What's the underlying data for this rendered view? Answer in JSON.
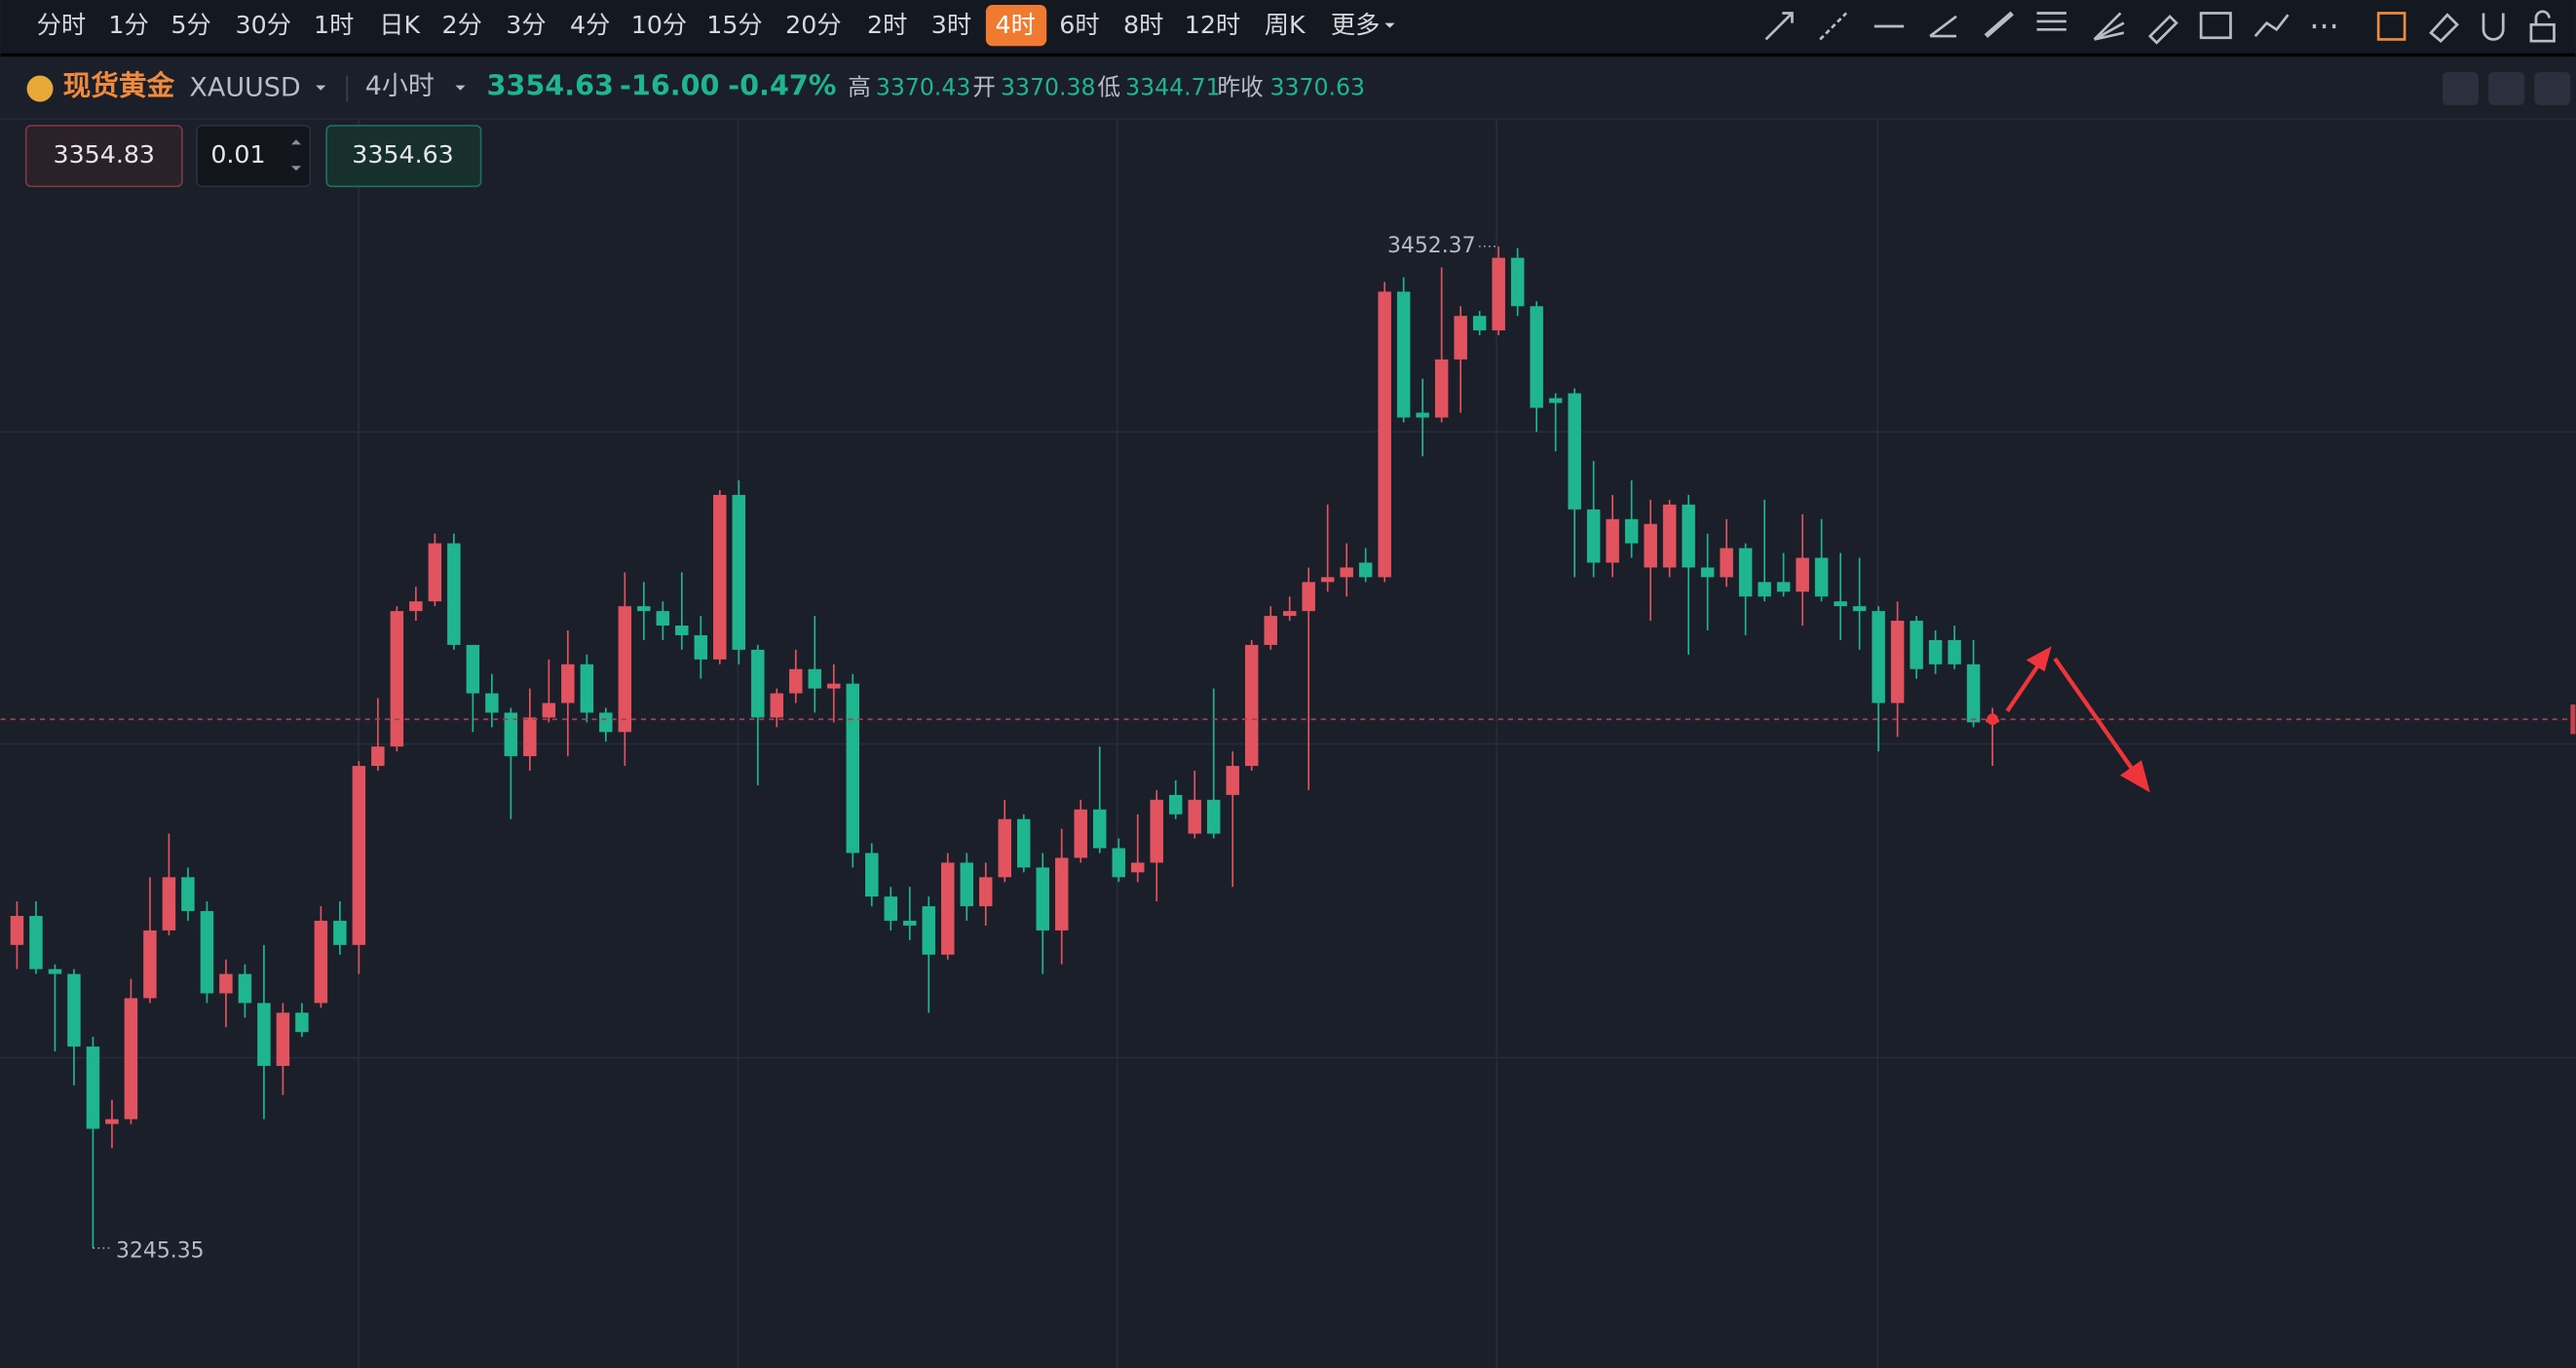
{
  "toolbar": {
    "periods": [
      "分时",
      "1分",
      "5分",
      "30分",
      "1时",
      "日K",
      "2分",
      "3分",
      "4分",
      "10分",
      "15分",
      "20分",
      "2时",
      "3时",
      "4时",
      "6时",
      "8时",
      "12时",
      "周K",
      "更多"
    ],
    "active_index": 14
  },
  "quote": {
    "name": "现货黄金",
    "symbol": "XAUUSD",
    "interval": "4小时",
    "price": 3354.63,
    "change": {
      "value": -16,
      "label": "-16.00"
    },
    "change_pct": {
      "value": -0.47,
      "label": "-0.47%"
    },
    "stats": [
      {
        "label": "高",
        "value": 3370.43
      },
      {
        "label": "开",
        "value": 3370.38
      },
      {
        "label": "低",
        "value": 3344.71
      },
      {
        "label": "昨收",
        "value": 3370.63
      }
    ]
  },
  "order": {
    "sell": 3354.83,
    "quantity": 0.01,
    "buy": 3354.63
  },
  "chart_data": {
    "type": "candlestick",
    "up_color": "#e0535f",
    "down_color": "#1fb58e",
    "candles": [
      {
        "open": 3308,
        "close": 3314,
        "high": 3317,
        "low": 3303
      },
      {
        "open": 3314,
        "close": 3303,
        "high": 3317,
        "low": 3302
      },
      {
        "open": 3303,
        "close": 3302,
        "high": 3304,
        "low": 3286
      },
      {
        "open": 3302,
        "close": 3287,
        "high": 3303,
        "low": 3279
      },
      {
        "open": 3287,
        "close": 3270,
        "high": 3289,
        "low": 3245.35
      },
      {
        "open": 3271,
        "close": 3272,
        "high": 3276,
        "low": 3266
      },
      {
        "open": 3272,
        "close": 3297,
        "high": 3301,
        "low": 3271
      },
      {
        "open": 3297,
        "close": 3311,
        "high": 3322,
        "low": 3296
      },
      {
        "open": 3311,
        "close": 3322,
        "high": 3331,
        "low": 3310
      },
      {
        "open": 3322,
        "close": 3315,
        "high": 3324,
        "low": 3313
      },
      {
        "open": 3315,
        "close": 3298,
        "high": 3317,
        "low": 3296
      },
      {
        "open": 3298,
        "close": 3302,
        "high": 3305,
        "low": 3291
      },
      {
        "open": 3302,
        "close": 3296,
        "high": 3304,
        "low": 3293
      },
      {
        "open": 3296,
        "close": 3283,
        "high": 3308,
        "low": 3272
      },
      {
        "open": 3283,
        "close": 3294,
        "high": 3296,
        "low": 3277
      },
      {
        "open": 3294,
        "close": 3290,
        "high": 3296,
        "low": 3289
      },
      {
        "open": 3296,
        "close": 3313,
        "high": 3316,
        "low": 3295
      },
      {
        "open": 3313,
        "close": 3308,
        "high": 3317,
        "low": 3306
      },
      {
        "open": 3308,
        "close": 3345,
        "high": 3346,
        "low": 3302
      },
      {
        "open": 3345,
        "close": 3349,
        "high": 3359,
        "low": 3344
      },
      {
        "open": 3349,
        "close": 3377,
        "high": 3378,
        "low": 3348
      },
      {
        "open": 3377,
        "close": 3379,
        "high": 3382,
        "low": 3375
      },
      {
        "open": 3379,
        "close": 3391,
        "high": 3393,
        "low": 3378
      },
      {
        "open": 3391,
        "close": 3370,
        "high": 3393,
        "low": 3369
      },
      {
        "open": 3370,
        "close": 3360,
        "high": 3370,
        "low": 3352
      },
      {
        "open": 3360,
        "close": 3356,
        "high": 3364,
        "low": 3353
      },
      {
        "open": 3356,
        "close": 3347,
        "high": 3357,
        "low": 3334
      },
      {
        "open": 3347,
        "close": 3355,
        "high": 3361,
        "low": 3344
      },
      {
        "open": 3355,
        "close": 3358,
        "high": 3367,
        "low": 3354
      },
      {
        "open": 3358,
        "close": 3366,
        "high": 3373,
        "low": 3347
      },
      {
        "open": 3366,
        "close": 3356,
        "high": 3368,
        "low": 3354
      },
      {
        "open": 3356,
        "close": 3352,
        "high": 3357,
        "low": 3350
      },
      {
        "open": 3352,
        "close": 3378,
        "high": 3385,
        "low": 3345
      },
      {
        "open": 3378,
        "close": 3377,
        "high": 3383,
        "low": 3371
      },
      {
        "open": 3377,
        "close": 3374,
        "high": 3379,
        "low": 3371
      },
      {
        "open": 3374,
        "close": 3372,
        "high": 3385,
        "low": 3369
      },
      {
        "open": 3372,
        "close": 3367,
        "high": 3376,
        "low": 3363
      },
      {
        "open": 3367,
        "close": 3401,
        "high": 3402,
        "low": 3366
      },
      {
        "open": 3401,
        "close": 3369,
        "high": 3404,
        "low": 3366
      },
      {
        "open": 3369,
        "close": 3355,
        "high": 3370,
        "low": 3341
      },
      {
        "open": 3355,
        "close": 3360,
        "high": 3361,
        "low": 3353
      },
      {
        "open": 3360,
        "close": 3365,
        "high": 3369,
        "low": 3358
      },
      {
        "open": 3365,
        "close": 3361,
        "high": 3376,
        "low": 3356
      },
      {
        "open": 3361,
        "close": 3362,
        "high": 3366,
        "low": 3354
      },
      {
        "open": 3362,
        "close": 3327,
        "high": 3364,
        "low": 3324
      },
      {
        "open": 3327,
        "close": 3318,
        "high": 3329,
        "low": 3316
      },
      {
        "open": 3318,
        "close": 3313,
        "high": 3320,
        "low": 3311
      },
      {
        "open": 3313,
        "close": 3312,
        "high": 3320,
        "low": 3309
      },
      {
        "open": 3316,
        "close": 3306,
        "high": 3318,
        "low": 3294
      },
      {
        "open": 3306,
        "close": 3325,
        "high": 3327,
        "low": 3305
      },
      {
        "open": 3325,
        "close": 3316,
        "high": 3327,
        "low": 3313
      },
      {
        "open": 3316,
        "close": 3322,
        "high": 3325,
        "low": 3312
      },
      {
        "open": 3322,
        "close": 3334,
        "high": 3338,
        "low": 3321
      },
      {
        "open": 3334,
        "close": 3324,
        "high": 3335,
        "low": 3323
      },
      {
        "open": 3324,
        "close": 3311,
        "high": 3327,
        "low": 3302
      },
      {
        "open": 3311,
        "close": 3326,
        "high": 3332,
        "low": 3304
      },
      {
        "open": 3326,
        "close": 3336,
        "high": 3338,
        "low": 3325
      },
      {
        "open": 3336,
        "close": 3328,
        "high": 3349,
        "low": 3327
      },
      {
        "open": 3328,
        "close": 3322,
        "high": 3330,
        "low": 3321
      },
      {
        "open": 3323,
        "close": 3325,
        "high": 3335,
        "low": 3321
      },
      {
        "open": 3325,
        "close": 3338,
        "high": 3340,
        "low": 3317
      },
      {
        "open": 3339,
        "close": 3335,
        "high": 3342,
        "low": 3334
      },
      {
        "open": 3331,
        "close": 3338,
        "high": 3344,
        "low": 3330
      },
      {
        "open": 3338,
        "close": 3331,
        "high": 3361,
        "low": 3330
      },
      {
        "open": 3339,
        "close": 3345,
        "high": 3348,
        "low": 3320
      },
      {
        "open": 3345,
        "close": 3370,
        "high": 3371,
        "low": 3344
      },
      {
        "open": 3370,
        "close": 3376,
        "high": 3378,
        "low": 3369
      },
      {
        "open": 3376,
        "close": 3377,
        "high": 3380,
        "low": 3375
      },
      {
        "open": 3377,
        "close": 3383,
        "high": 3386,
        "low": 3340
      },
      {
        "open": 3383,
        "close": 3384,
        "high": 3399,
        "low": 3381
      },
      {
        "open": 3384,
        "close": 3386,
        "high": 3391,
        "low": 3380
      },
      {
        "open": 3387,
        "close": 3384,
        "high": 3390,
        "low": 3383
      },
      {
        "open": 3384,
        "close": 3443,
        "high": 3445,
        "low": 3383
      },
      {
        "open": 3443,
        "close": 3417,
        "high": 3446,
        "low": 3416
      },
      {
        "open": 3418,
        "close": 3417,
        "high": 3425,
        "low": 3409
      },
      {
        "open": 3417,
        "close": 3429,
        "high": 3448,
        "low": 3416
      },
      {
        "open": 3429,
        "close": 3438,
        "high": 3440,
        "low": 3418
      },
      {
        "open": 3438,
        "close": 3435,
        "high": 3439,
        "low": 3434
      },
      {
        "open": 3435,
        "close": 3450,
        "high": 3452.37,
        "low": 3434
      },
      {
        "open": 3450,
        "close": 3440,
        "high": 3452,
        "low": 3438
      },
      {
        "open": 3440,
        "close": 3419,
        "high": 3441,
        "low": 3414
      },
      {
        "open": 3421,
        "close": 3420,
        "high": 3422,
        "low": 3410
      },
      {
        "open": 3422,
        "close": 3398,
        "high": 3423,
        "low": 3384
      },
      {
        "open": 3398,
        "close": 3387,
        "high": 3408,
        "low": 3384
      },
      {
        "open": 3387,
        "close": 3396,
        "high": 3401,
        "low": 3384
      },
      {
        "open": 3396,
        "close": 3391,
        "high": 3404,
        "low": 3388
      },
      {
        "open": 3386,
        "close": 3395,
        "high": 3400,
        "low": 3375
      },
      {
        "open": 3386,
        "close": 3399,
        "high": 3400,
        "low": 3384
      },
      {
        "open": 3399,
        "close": 3386,
        "high": 3401,
        "low": 3368
      },
      {
        "open": 3386,
        "close": 3384,
        "high": 3393,
        "low": 3373
      },
      {
        "open": 3384,
        "close": 3390,
        "high": 3396,
        "low": 3382
      },
      {
        "open": 3390,
        "close": 3380,
        "high": 3391,
        "low": 3372
      },
      {
        "open": 3383,
        "close": 3380,
        "high": 3400,
        "low": 3379
      },
      {
        "open": 3383,
        "close": 3381,
        "high": 3389,
        "low": 3380
      },
      {
        "open": 3381,
        "close": 3388,
        "high": 3397,
        "low": 3374
      },
      {
        "open": 3388,
        "close": 3380,
        "high": 3396,
        "low": 3379
      },
      {
        "open": 3379,
        "close": 3378,
        "high": 3389,
        "low": 3371
      },
      {
        "open": 3378,
        "close": 3377,
        "high": 3388,
        "low": 3369
      },
      {
        "open": 3377,
        "close": 3358,
        "high": 3378,
        "low": 3348
      },
      {
        "open": 3358,
        "close": 3375,
        "high": 3379,
        "low": 3351
      },
      {
        "open": 3375,
        "close": 3365,
        "high": 3376,
        "low": 3363
      },
      {
        "open": 3371,
        "close": 3366,
        "high": 3373,
        "low": 3364
      },
      {
        "open": 3371,
        "close": 3366,
        "high": 3374,
        "low": 3365
      },
      {
        "open": 3366,
        "close": 3354,
        "high": 3371,
        "low": 3353
      },
      {
        "open": 3354,
        "close": 3354.63,
        "high": 3357,
        "low": 3345
      }
    ]
  }
}
